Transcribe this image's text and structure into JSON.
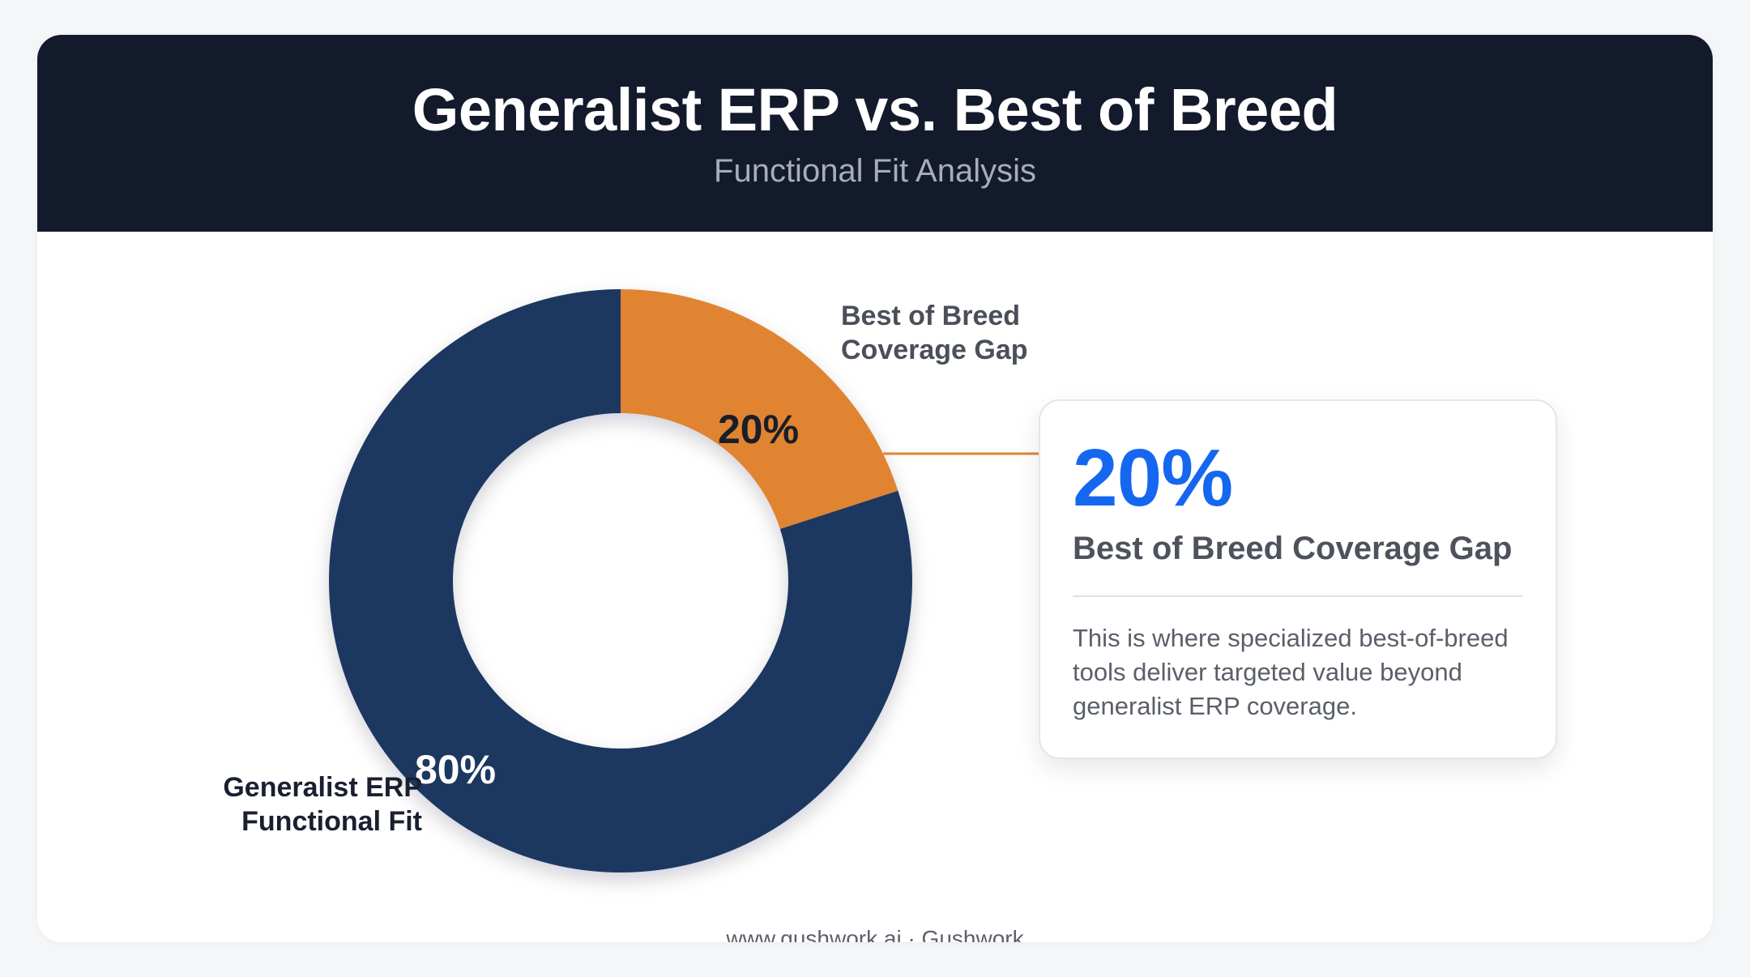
{
  "header": {
    "title": "Generalist ERP vs. Best of Breed",
    "subtitle": "Functional Fit Analysis"
  },
  "chart_data": {
    "type": "pie",
    "variant": "donut",
    "title": "Generalist ERP vs. Best of Breed",
    "subtitle": "Functional Fit Analysis",
    "series": [
      {
        "label_lines": [
          "Best of Breed",
          "Coverage Gap"
        ],
        "value": 20,
        "value_label": "20%",
        "color": "#e08430"
      },
      {
        "label_lines": [
          "Generalist ERP",
          "Functional Fit"
        ],
        "value": 80,
        "value_label": "80%",
        "color": "#1f3860"
      }
    ]
  },
  "callout": {
    "value": "20%",
    "title": "Best of Breed Coverage Gap",
    "body": "This is where specialized best-of-breed tools deliver targeted value beyond generalist ERP coverage."
  },
  "colors": {
    "header_bg": "#131a2b",
    "accent_blue": "#1667f0",
    "connector": "#e08430"
  },
  "footer": {
    "text": "www.gushwork.ai · Gushwork"
  }
}
